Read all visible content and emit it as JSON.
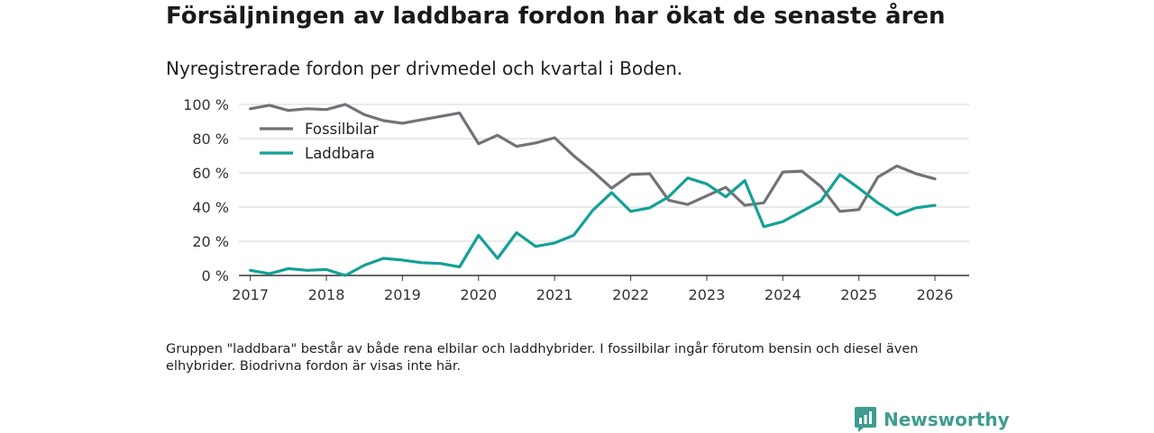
{
  "header": {
    "title": "Försäljningen av laddbara fordon har ökat de senaste åren",
    "subtitle": "Nyregistrerade fordon per drivmedel och kvartal i Boden."
  },
  "footer": {
    "note": "Gruppen \"laddbara\" består av både rena elbilar och laddhybrider. I fossilbilar ingår förutom bensin och diesel även elhybrider. Biodrivna fordon är visas inte här.",
    "brand": "Newsworthy",
    "brand_icon": "newsworthy-logo-icon"
  },
  "chart_data": {
    "type": "line",
    "x_unit": "year",
    "xlim": [
      2016.85,
      2026.45
    ],
    "ylim": [
      0,
      100
    ],
    "x_ticks": [
      2017,
      2018,
      2019,
      2020,
      2021,
      2022,
      2023,
      2024,
      2025,
      2026
    ],
    "x_tick_labels": [
      "2017",
      "2018",
      "2019",
      "2020",
      "2021",
      "2022",
      "2023",
      "2024",
      "2025",
      "2026"
    ],
    "y_ticks": [
      0,
      20,
      40,
      60,
      80,
      100
    ],
    "y_tick_labels": [
      "0 %",
      "20 %",
      "40 %",
      "60 %",
      "80 %",
      "100 %"
    ],
    "grid": true,
    "legend_position": "top-left",
    "series": [
      {
        "name": "Fossilbilar",
        "color": "#737278",
        "points": [
          [
            2017.0,
            97.5
          ],
          [
            2017.25,
            99.5
          ],
          [
            2017.5,
            96.5
          ],
          [
            2017.75,
            97.5
          ],
          [
            2018.0,
            97.0
          ],
          [
            2018.25,
            100.0
          ],
          [
            2018.5,
            94.0
          ],
          [
            2018.75,
            90.5
          ],
          [
            2019.0,
            89.0
          ],
          [
            2019.25,
            91.0
          ],
          [
            2019.5,
            93.0
          ],
          [
            2019.75,
            95.0
          ],
          [
            2020.0,
            77.0
          ],
          [
            2020.25,
            82.0
          ],
          [
            2020.5,
            75.5
          ],
          [
            2020.75,
            77.5
          ],
          [
            2021.0,
            80.5
          ],
          [
            2021.25,
            70.0
          ],
          [
            2021.5,
            61.0
          ],
          [
            2021.75,
            51.0
          ],
          [
            2022.0,
            59.0
          ],
          [
            2022.25,
            59.5
          ],
          [
            2022.5,
            44.0
          ],
          [
            2022.75,
            41.5
          ],
          [
            2023.0,
            46.5
          ],
          [
            2023.25,
            51.5
          ],
          [
            2023.5,
            41.0
          ],
          [
            2023.75,
            42.5
          ],
          [
            2024.0,
            60.5
          ],
          [
            2024.25,
            61.0
          ],
          [
            2024.5,
            52.0
          ],
          [
            2024.75,
            37.5
          ],
          [
            2025.0,
            38.5
          ],
          [
            2025.25,
            57.5
          ],
          [
            2025.5,
            64.0
          ],
          [
            2025.75,
            59.5
          ],
          [
            2026.0,
            56.5
          ]
        ]
      },
      {
        "name": "Laddbara",
        "color": "#14a195",
        "points": [
          [
            2017.0,
            3.0
          ],
          [
            2017.25,
            1.0
          ],
          [
            2017.5,
            4.0
          ],
          [
            2017.75,
            3.0
          ],
          [
            2018.0,
            3.5
          ],
          [
            2018.25,
            0.0
          ],
          [
            2018.5,
            6.0
          ],
          [
            2018.75,
            10.0
          ],
          [
            2019.0,
            9.0
          ],
          [
            2019.25,
            7.5
          ],
          [
            2019.5,
            7.0
          ],
          [
            2019.75,
            5.0
          ],
          [
            2020.0,
            23.5
          ],
          [
            2020.25,
            10.0
          ],
          [
            2020.5,
            25.0
          ],
          [
            2020.75,
            17.0
          ],
          [
            2021.0,
            19.0
          ],
          [
            2021.25,
            23.5
          ],
          [
            2021.5,
            38.0
          ],
          [
            2021.75,
            48.5
          ],
          [
            2022.0,
            37.5
          ],
          [
            2022.25,
            39.5
          ],
          [
            2022.5,
            46.0
          ],
          [
            2022.75,
            57.0
          ],
          [
            2023.0,
            53.5
          ],
          [
            2023.25,
            46.0
          ],
          [
            2023.5,
            55.5
          ],
          [
            2023.75,
            28.5
          ],
          [
            2024.0,
            31.5
          ],
          [
            2024.25,
            37.5
          ],
          [
            2024.5,
            43.5
          ],
          [
            2024.75,
            59.0
          ],
          [
            2025.0,
            51.0
          ],
          [
            2025.25,
            42.5
          ],
          [
            2025.5,
            35.5
          ],
          [
            2025.75,
            39.5
          ],
          [
            2026.0,
            41.0
          ]
        ]
      }
    ]
  }
}
